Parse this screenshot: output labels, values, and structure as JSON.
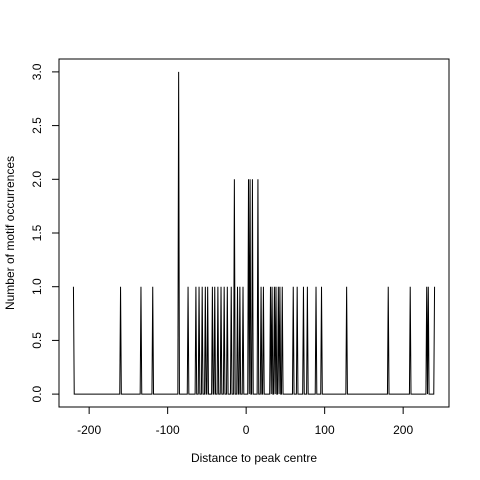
{
  "chart_data": {
    "type": "line",
    "xlabel": "Distance to peak centre",
    "ylabel": "Number of motif occurrences",
    "color": "#000000",
    "xlim": [
      -238.4,
      258.4
    ],
    "ylim": [
      -0.12,
      3.12
    ],
    "xticks": [
      -200,
      -100,
      0,
      100,
      200
    ],
    "yticks": [
      {
        "value": 0,
        "label": "0.0"
      },
      {
        "value": 0.5,
        "label": "0.5"
      },
      {
        "value": 1,
        "label": "1.0"
      },
      {
        "value": 1.5,
        "label": "1.5"
      },
      {
        "value": 2,
        "label": "2.0"
      },
      {
        "value": 2.5,
        "label": "2.5"
      },
      {
        "value": 3,
        "label": "3.0"
      }
    ],
    "x": [
      -220,
      -219,
      -161,
      -160,
      -159,
      -135,
      -134,
      -133,
      -120,
      -119,
      -118,
      -87,
      -86,
      -85,
      -75,
      -74,
      -73,
      -65,
      -64,
      -63,
      -61,
      -60,
      -59,
      -57,
      -56,
      -55,
      -53,
      -52,
      -51,
      -50,
      -49,
      -48,
      -44,
      -43,
      -42,
      -41,
      -40,
      -39,
      -37,
      -36,
      -35,
      -33,
      -32,
      -31,
      -29,
      -28,
      -27,
      -25,
      -24,
      -23,
      -20,
      -19,
      -18,
      -16,
      -15,
      -14,
      -12,
      -11,
      -10,
      -9,
      -8,
      -7,
      -5,
      -4,
      -3,
      2,
      3,
      4,
      5,
      6,
      7,
      8,
      9,
      14,
      15,
      16,
      18,
      19,
      20,
      21,
      22,
      23,
      30,
      31,
      32,
      33,
      34,
      35,
      36,
      37,
      38,
      39,
      40,
      41,
      42,
      43,
      44,
      45,
      46,
      47,
      59,
      60,
      61,
      64,
      65,
      66,
      72,
      73,
      74,
      77,
      78,
      79,
      88,
      89,
      90,
      95,
      96,
      97,
      127,
      128,
      129,
      180,
      181,
      182,
      208,
      209,
      210,
      229,
      230,
      231,
      232,
      233,
      239,
      240
    ],
    "values": [
      1,
      0,
      0,
      1,
      0,
      0,
      1,
      0,
      0,
      1,
      0,
      0,
      3,
      0,
      0,
      1,
      0,
      0,
      1,
      0,
      0,
      1,
      0,
      0,
      1,
      0,
      0,
      1,
      0,
      0,
      1,
      0,
      0,
      1,
      0,
      0,
      1,
      0,
      0,
      1,
      0,
      0,
      1,
      0,
      0,
      1,
      0,
      0,
      1,
      0,
      0,
      1,
      0,
      0,
      2,
      0,
      0,
      1,
      0,
      0,
      1,
      0,
      0,
      1,
      0,
      0,
      2,
      0,
      2,
      0,
      0,
      2,
      0,
      0,
      2,
      0,
      0,
      1,
      0,
      0,
      1,
      0,
      0,
      1,
      0,
      1,
      0,
      0,
      1,
      0,
      1,
      0,
      0,
      1,
      0,
      1,
      0,
      0,
      1,
      0,
      0,
      1,
      0,
      0,
      1,
      0,
      0,
      1,
      0,
      0,
      1,
      0,
      0,
      1,
      0,
      0,
      1,
      0,
      0,
      1,
      0,
      0,
      1,
      0,
      0,
      1,
      0,
      0,
      1,
      0,
      1,
      0,
      0,
      1
    ]
  }
}
